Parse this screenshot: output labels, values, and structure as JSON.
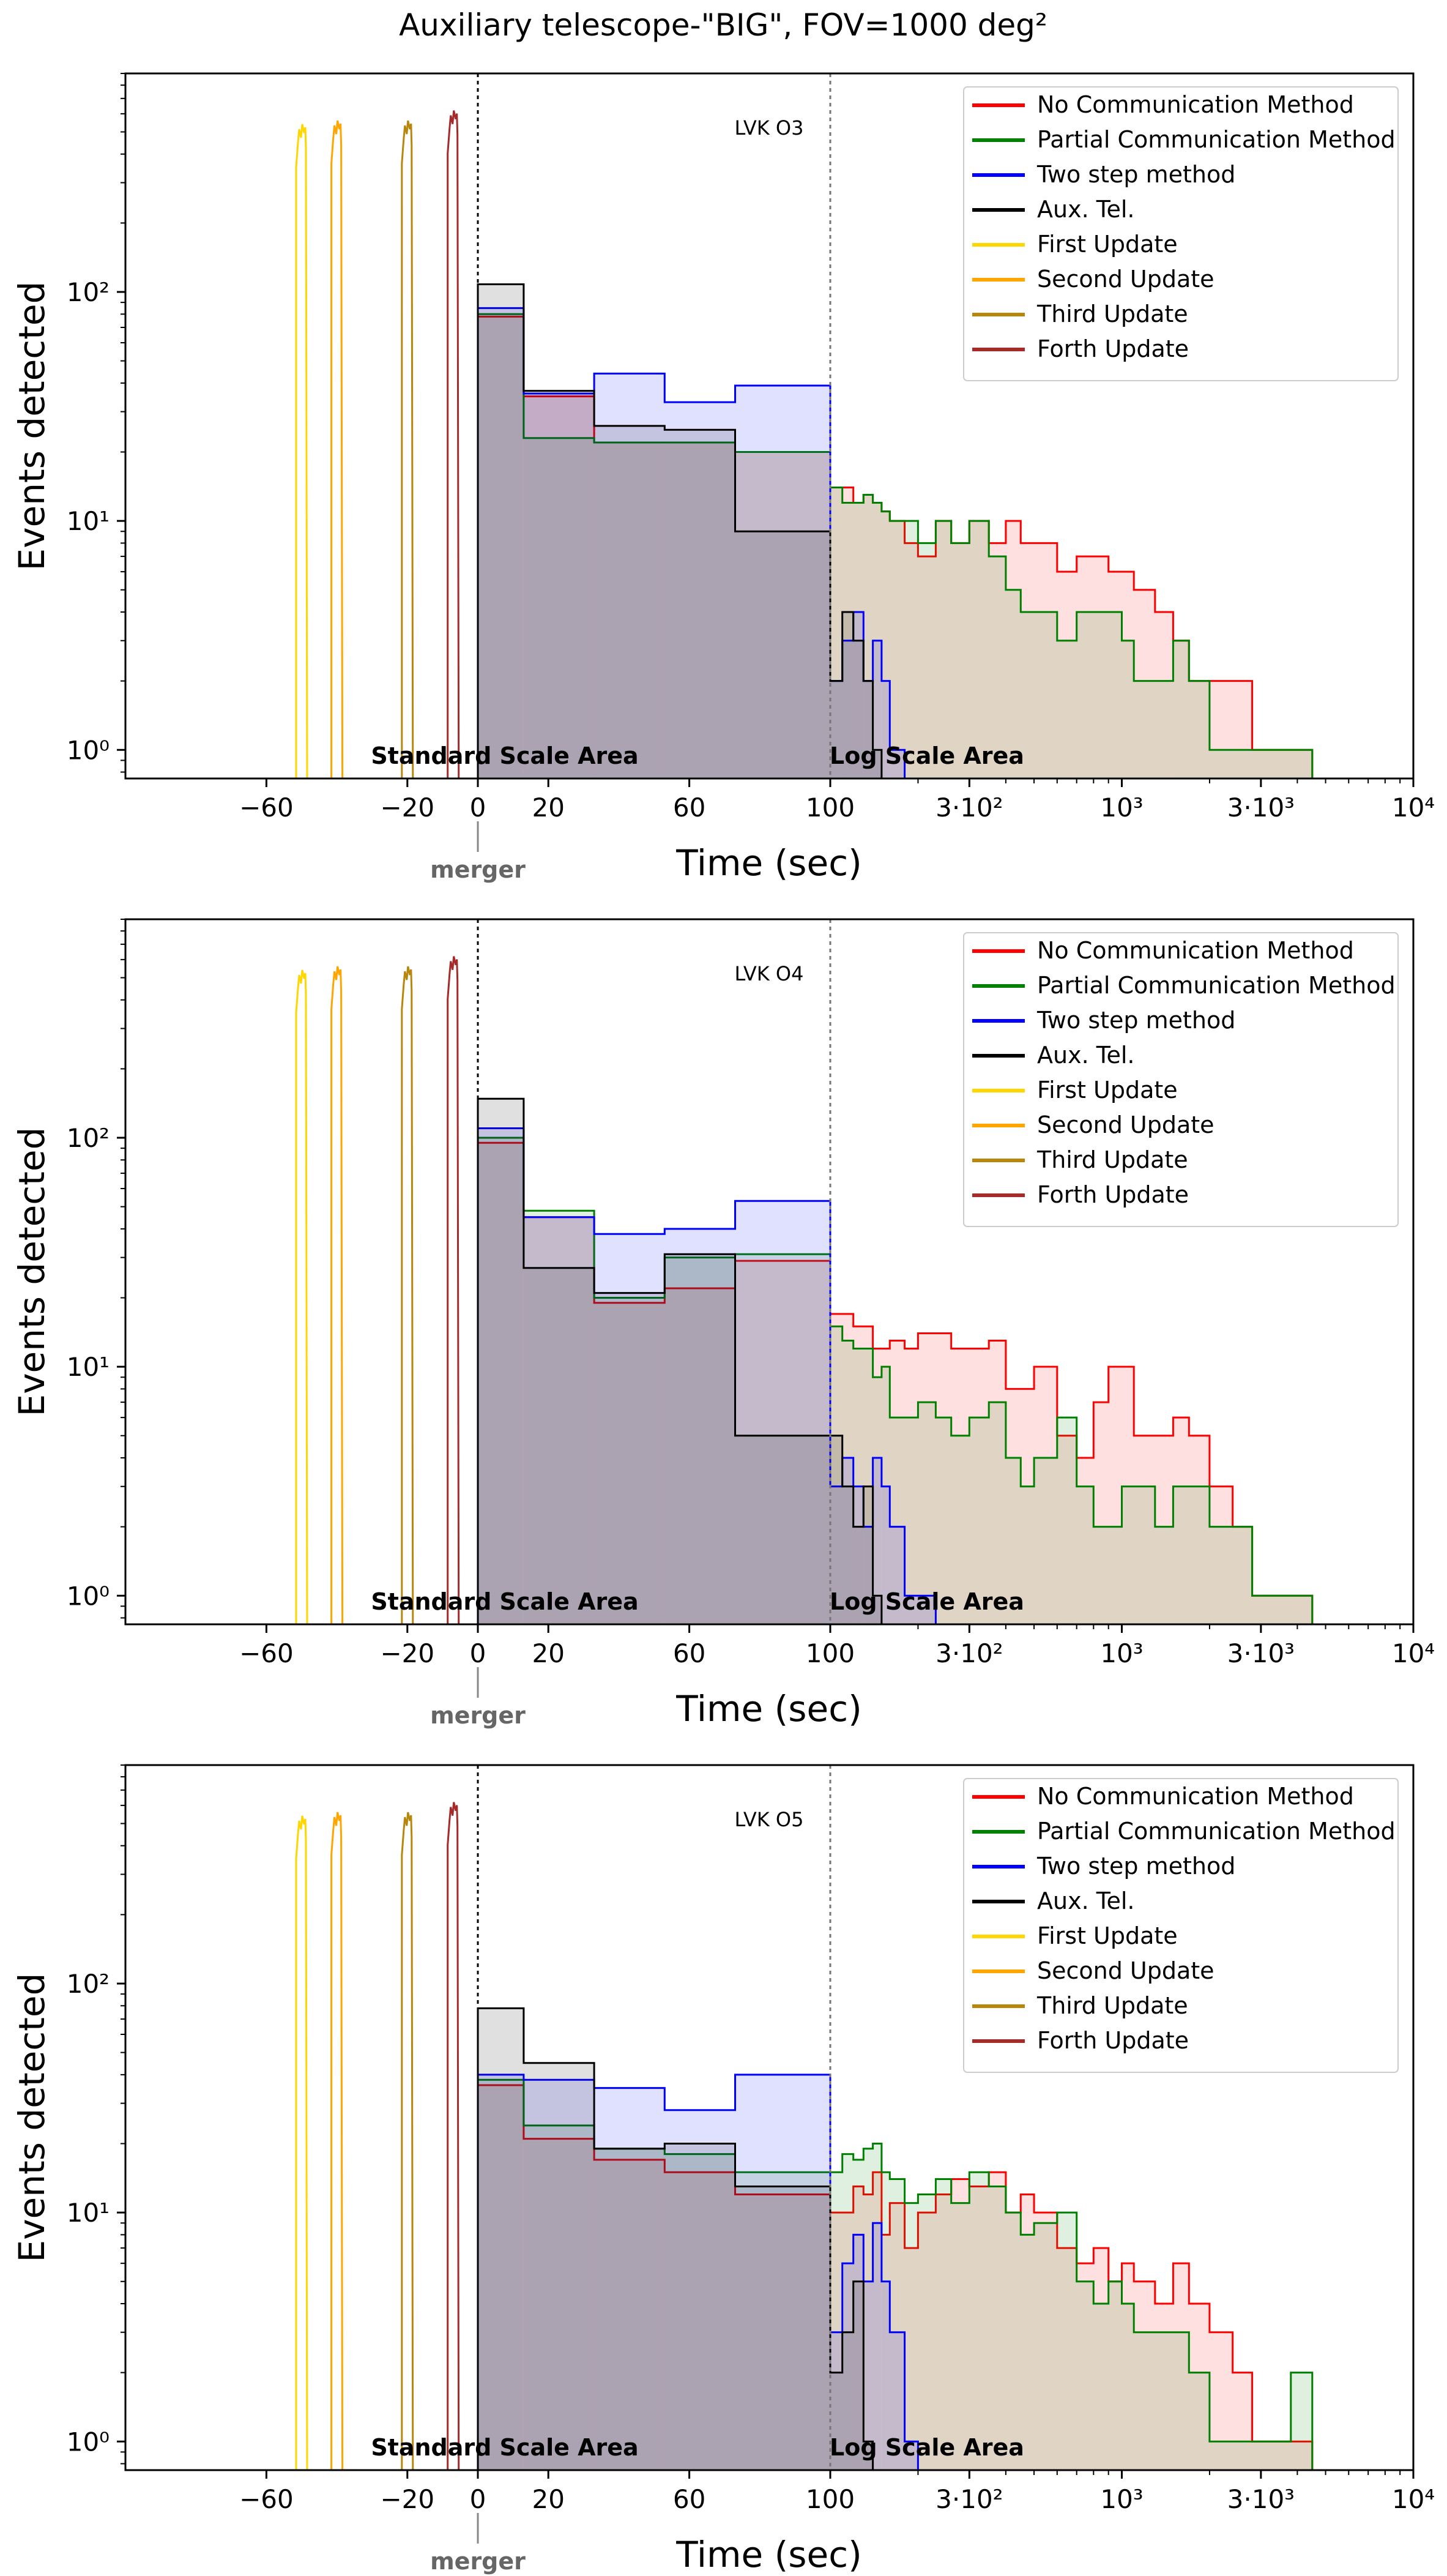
{
  "figure_title": "Auxiliary telescope-\"BIG\", FOV=1000 deg²",
  "colors": {
    "no_comm": "#ff0000",
    "partial": "#008000",
    "two_step": "#0000ff",
    "aux": "#000000",
    "first": "#ffd700",
    "second": "#ffa500",
    "third": "#b8860b",
    "fourth": "#a52a2a",
    "merger_line": "#888888"
  },
  "chart_data": [
    {
      "type": "histogram",
      "title": "LVK O3",
      "xlabel": "Time (sec)",
      "ylabel": "Events detected",
      "yscale": "log",
      "ylim": [
        0.75,
        900
      ],
      "x_axis": {
        "linear_range": [
          -100,
          100
        ],
        "log_range": [
          100,
          10000
        ],
        "tick_values": [
          -60,
          -20,
          0,
          20,
          60,
          100,
          300,
          1000,
          3000,
          10000
        ],
        "tick_labels": [
          "−60",
          "−20",
          "0",
          "20",
          "60",
          "100",
          "3·10²",
          "10³",
          "3·10³",
          "10⁴"
        ]
      },
      "y_tick_labels": [
        "10⁰",
        "10¹",
        "10²"
      ],
      "annotations": {
        "standard": "Standard Scale Area",
        "log": "Log Scale Area",
        "merger": "merger"
      },
      "legend": [
        "No Communication Method",
        "Partial Communication Method",
        "Two step method",
        "Aux. Tel.",
        "First Update",
        "Second Update",
        "Third Update",
        "Forth Update"
      ],
      "update_peaks": [
        {
          "name": "First Update",
          "center": -50,
          "peak": 540
        },
        {
          "name": "Second Update",
          "center": -40,
          "peak": 560
        },
        {
          "name": "Third Update",
          "center": -20,
          "peak": 560
        },
        {
          "name": "Forth Update",
          "center": -7,
          "peak": 620
        }
      ],
      "series": [
        {
          "name": "No Communication Method",
          "edges": [
            0,
            13,
            33,
            53,
            73,
            100,
            110,
            120,
            130,
            140,
            150,
            160,
            180,
            200,
            230,
            260,
            300,
            350,
            400,
            450,
            500,
            600,
            700,
            800,
            900,
            1000,
            1100,
            1300,
            1500,
            1700,
            2000,
            2400,
            2800,
            3300,
            3800,
            4500
          ],
          "values": [
            78,
            35,
            22,
            22,
            20,
            14,
            14,
            12,
            13,
            12,
            11,
            10,
            8,
            7,
            10,
            8,
            10,
            8,
            10,
            8,
            8,
            6,
            7,
            7,
            6,
            6,
            5,
            4,
            3,
            2,
            2,
            2,
            1,
            1,
            1
          ]
        },
        {
          "name": "Partial Communication Method",
          "edges": [
            0,
            13,
            33,
            53,
            73,
            100,
            110,
            120,
            130,
            140,
            150,
            160,
            180,
            200,
            230,
            260,
            300,
            350,
            400,
            450,
            500,
            600,
            700,
            800,
            900,
            1000,
            1100,
            1300,
            1500,
            1700,
            2000,
            2400,
            2800,
            3300,
            3800,
            4500
          ],
          "values": [
            80,
            23,
            22,
            22,
            20,
            14,
            12,
            12,
            13,
            12,
            11,
            10,
            10,
            8,
            10,
            8,
            10,
            7,
            5,
            4,
            4,
            3,
            4,
            4,
            4,
            3,
            2,
            2,
            3,
            2,
            1,
            1,
            1,
            1,
            1
          ]
        },
        {
          "name": "Two step method",
          "edges": [
            0,
            13,
            33,
            53,
            73,
            100,
            110,
            120,
            130,
            140,
            150,
            160,
            180
          ],
          "values": [
            85,
            36,
            44,
            33,
            39,
            2,
            3,
            4,
            2,
            3,
            2,
            1
          ]
        },
        {
          "name": "Aux. Tel.",
          "edges": [
            0,
            13,
            33,
            53,
            73,
            100,
            110,
            120,
            130,
            140,
            150
          ],
          "values": [
            108,
            37,
            26,
            25,
            9,
            2,
            4,
            3,
            2,
            1
          ]
        }
      ]
    },
    {
      "type": "histogram",
      "title": "LVK O4",
      "xlabel": "Time (sec)",
      "ylabel": "Events detected",
      "yscale": "log",
      "ylim": [
        0.75,
        900
      ],
      "x_axis": {
        "linear_range": [
          -100,
          100
        ],
        "log_range": [
          100,
          10000
        ],
        "tick_values": [
          -60,
          -20,
          0,
          20,
          60,
          100,
          300,
          1000,
          3000,
          10000
        ],
        "tick_labels": [
          "−60",
          "−20",
          "0",
          "20",
          "60",
          "100",
          "3·10²",
          "10³",
          "3·10³",
          "10⁴"
        ]
      },
      "y_tick_labels": [
        "10⁰",
        "10¹",
        "10²"
      ],
      "annotations": {
        "standard": "Standard Scale Area",
        "log": "Log Scale Area",
        "merger": "merger"
      },
      "legend": [
        "No Communication Method",
        "Partial Communication Method",
        "Two step method",
        "Aux. Tel.",
        "First Update",
        "Second Update",
        "Third Update",
        "Forth Update"
      ],
      "update_peaks": [
        {
          "name": "First Update",
          "center": -50,
          "peak": 540
        },
        {
          "name": "Second Update",
          "center": -40,
          "peak": 560
        },
        {
          "name": "Third Update",
          "center": -20,
          "peak": 560
        },
        {
          "name": "Forth Update",
          "center": -7,
          "peak": 620
        }
      ],
      "series": [
        {
          "name": "No Communication Method",
          "edges": [
            0,
            13,
            33,
            53,
            73,
            100,
            110,
            120,
            130,
            140,
            150,
            160,
            180,
            200,
            230,
            260,
            300,
            350,
            400,
            450,
            500,
            600,
            700,
            800,
            900,
            1000,
            1100,
            1300,
            1500,
            1700,
            2000,
            2400,
            2800,
            3300,
            3800,
            4500
          ],
          "values": [
            95,
            45,
            19,
            22,
            29,
            17,
            17,
            15,
            15,
            12,
            12,
            13,
            12,
            14,
            14,
            12,
            12,
            13,
            8,
            8,
            10,
            5,
            4,
            7,
            10,
            10,
            5,
            5,
            6,
            5,
            3,
            2,
            1,
            1,
            1
          ]
        },
        {
          "name": "Partial Communication Method",
          "edges": [
            0,
            13,
            33,
            53,
            73,
            100,
            110,
            120,
            130,
            140,
            150,
            160,
            180,
            200,
            230,
            260,
            300,
            350,
            400,
            450,
            500,
            600,
            700,
            800,
            900,
            1000,
            1100,
            1300,
            1500,
            1700,
            2000,
            2400,
            2800,
            3300,
            3800,
            4500
          ],
          "values": [
            100,
            48,
            20,
            30,
            31,
            15,
            13,
            12,
            12,
            9,
            10,
            6,
            6,
            7,
            6,
            5,
            6,
            7,
            4,
            3,
            4,
            6,
            3,
            2,
            2,
            3,
            3,
            2,
            3,
            3,
            2,
            2,
            1,
            1,
            1
          ]
        },
        {
          "name": "Two step method",
          "edges": [
            0,
            13,
            33,
            53,
            73,
            100,
            110,
            120,
            130,
            140,
            150,
            160,
            180,
            200,
            230
          ],
          "values": [
            110,
            45,
            38,
            40,
            53,
            3,
            4,
            3,
            2,
            4,
            3,
            2,
            1,
            1
          ]
        },
        {
          "name": "Aux. Tel.",
          "edges": [
            0,
            13,
            33,
            53,
            73,
            100,
            110,
            120,
            130,
            140,
            150
          ],
          "values": [
            148,
            27,
            21,
            31,
            5,
            5,
            3,
            2,
            3,
            1
          ]
        }
      ]
    },
    {
      "type": "histogram",
      "title": "LVK O5",
      "xlabel": "Time (sec)",
      "ylabel": "Events detected",
      "yscale": "log",
      "ylim": [
        0.75,
        900
      ],
      "x_axis": {
        "linear_range": [
          -100,
          100
        ],
        "log_range": [
          100,
          10000
        ],
        "tick_values": [
          -60,
          -20,
          0,
          20,
          60,
          100,
          300,
          1000,
          3000,
          10000
        ],
        "tick_labels": [
          "−60",
          "−20",
          "0",
          "20",
          "60",
          "100",
          "3·10²",
          "10³",
          "3·10³",
          "10⁴"
        ]
      },
      "y_tick_labels": [
        "10⁰",
        "10¹",
        "10²"
      ],
      "annotations": {
        "standard": "Standard Scale Area",
        "log": "Log Scale Area",
        "merger": "merger"
      },
      "legend": [
        "No Communication Method",
        "Partial Communication Method",
        "Two step method",
        "Aux. Tel.",
        "First Update",
        "Second Update",
        "Third Update",
        "Forth Update"
      ],
      "update_peaks": [
        {
          "name": "First Update",
          "center": -50,
          "peak": 540
        },
        {
          "name": "Second Update",
          "center": -40,
          "peak": 560
        },
        {
          "name": "Third Update",
          "center": -20,
          "peak": 560
        },
        {
          "name": "Forth Update",
          "center": -7,
          "peak": 620
        }
      ],
      "series": [
        {
          "name": "No Communication Method",
          "edges": [
            0,
            13,
            33,
            53,
            73,
            100,
            110,
            120,
            130,
            140,
            150,
            160,
            180,
            200,
            230,
            260,
            300,
            350,
            400,
            450,
            500,
            600,
            700,
            800,
            900,
            1000,
            1100,
            1300,
            1500,
            1700,
            2000,
            2400,
            2800,
            3300,
            3800,
            4500
          ],
          "values": [
            36,
            21,
            17,
            15,
            12,
            10,
            10,
            13,
            12,
            15,
            8,
            11,
            7,
            10,
            12,
            14,
            13,
            15,
            10,
            12,
            10,
            7,
            6,
            7,
            5,
            6,
            5,
            4,
            6,
            4,
            3,
            2,
            1,
            1,
            1
          ]
        },
        {
          "name": "Partial Communication Method",
          "edges": [
            0,
            13,
            33,
            53,
            73,
            100,
            110,
            120,
            130,
            140,
            150,
            160,
            180,
            200,
            230,
            260,
            300,
            350,
            400,
            450,
            500,
            600,
            700,
            800,
            900,
            1000,
            1100,
            1300,
            1500,
            1700,
            2000,
            2400,
            2800,
            3300,
            3800,
            4500
          ],
          "values": [
            38,
            24,
            19,
            18,
            15,
            15,
            18,
            17,
            19,
            20,
            15,
            14,
            11,
            12,
            14,
            11,
            15,
            13,
            10,
            8,
            9,
            10,
            5,
            4,
            5,
            4,
            3,
            3,
            3,
            2,
            1,
            1,
            1,
            1,
            2
          ]
        },
        {
          "name": "Two step method",
          "edges": [
            0,
            13,
            33,
            53,
            73,
            100,
            110,
            120,
            130,
            140,
            150,
            160,
            180,
            200
          ],
          "values": [
            40,
            38,
            35,
            28,
            40,
            3,
            6,
            8,
            5,
            9,
            5,
            3,
            1
          ]
        },
        {
          "name": "Aux. Tel.",
          "edges": [
            0,
            13,
            33,
            53,
            73,
            100,
            110,
            120,
            130,
            140
          ],
          "values": [
            78,
            45,
            19,
            20,
            13,
            2,
            3,
            5,
            1
          ]
        }
      ]
    }
  ]
}
